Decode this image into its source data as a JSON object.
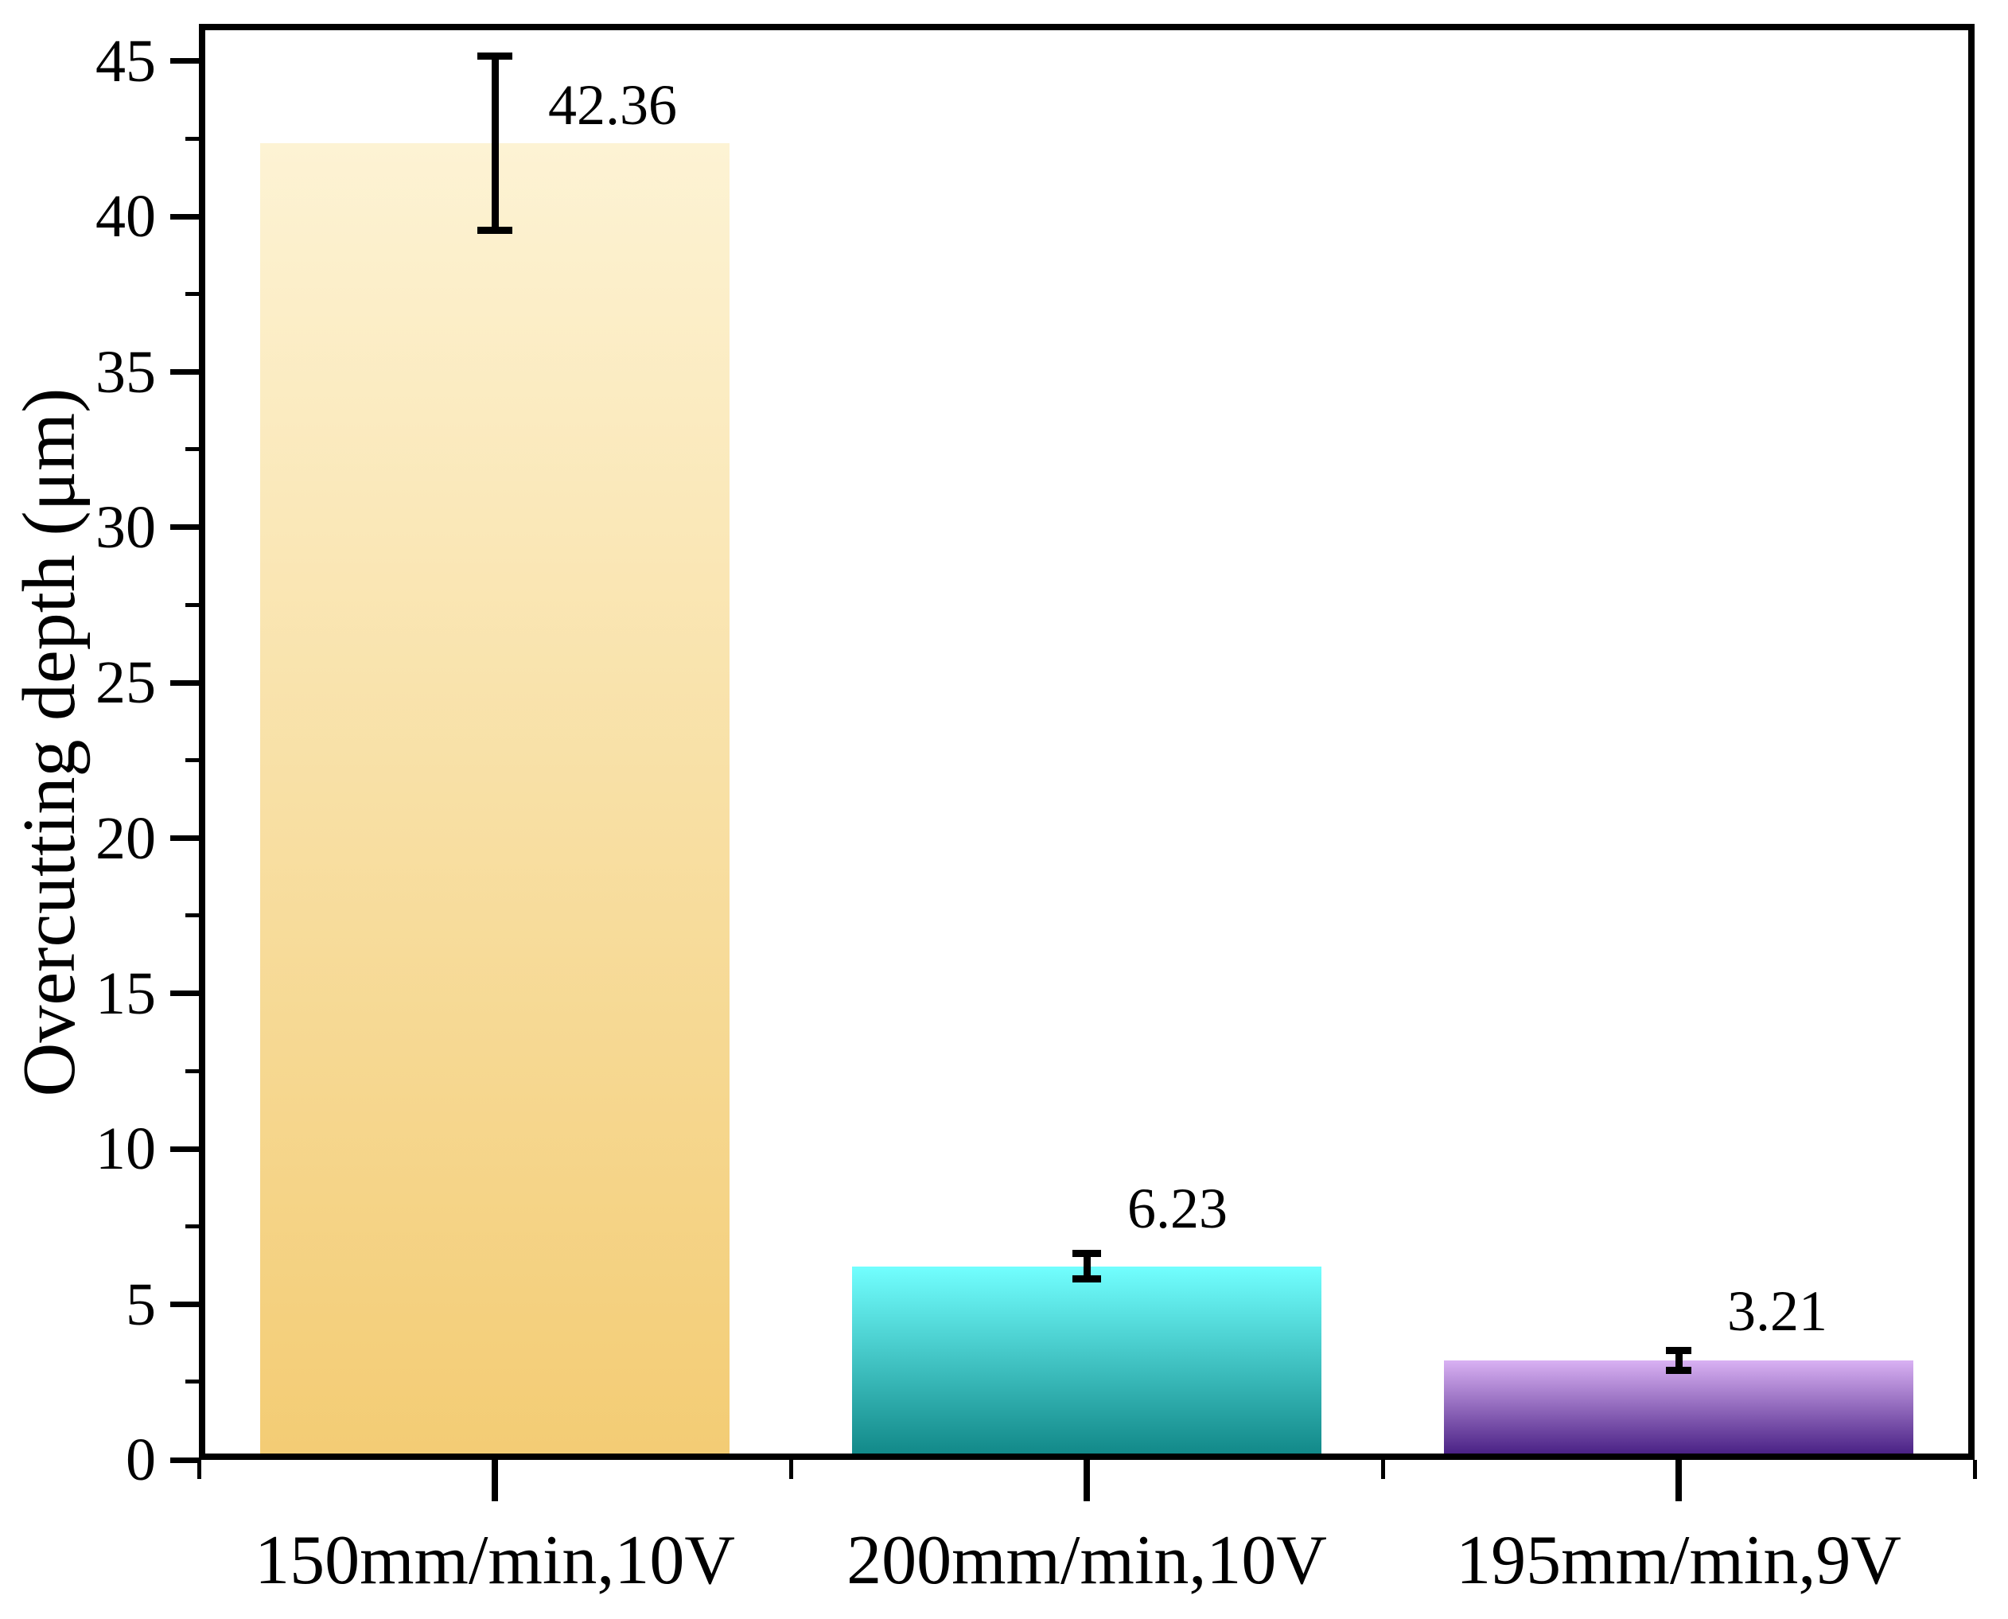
{
  "chart_data": {
    "type": "bar",
    "title": "",
    "ylabel": "Overcutting depth (μm)",
    "xlabel": "",
    "categories": [
      "150mm/min,10V",
      "200mm/min,10V",
      "195mm/min,9V"
    ],
    "values": [
      42.36,
      6.23,
      3.21
    ],
    "errors": [
      2.8,
      0.41,
      0.32
    ],
    "value_labels": [
      "42.36",
      "6.23",
      "3.21"
    ],
    "ylim": [
      0,
      46.2
    ],
    "yticks": [
      0,
      5,
      10,
      15,
      20,
      25,
      30,
      35,
      40,
      45
    ],
    "ytick_minor_interval": 2.5,
    "grid": false,
    "legend": false,
    "background_color": "#ffffff",
    "axis_color": "#000000",
    "error_bar_color": "#000000",
    "bar_gradients": [
      {
        "top": "#FDF3D4",
        "bottom": "#F3CC74"
      },
      {
        "top": "#72FFFF",
        "bottom": "#0F8585"
      },
      {
        "top": "#D9B1F3",
        "bottom": "#40187E"
      }
    ]
  }
}
